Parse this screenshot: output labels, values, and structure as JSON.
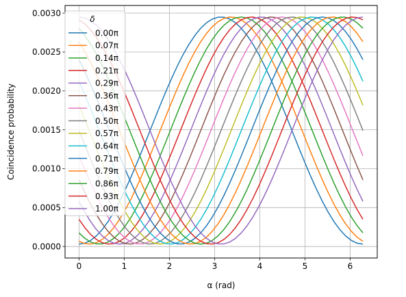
{
  "chart_data": {
    "type": "line",
    "xlabel": "α (rad)",
    "ylabel": "Coincidence probability",
    "xlim": [
      -0.31,
      6.6
    ],
    "ylim": [
      -0.000148,
      0.003098
    ],
    "x_ticks": [
      {
        "value": 0,
        "label": "0"
      },
      {
        "value": 1,
        "label": "1"
      },
      {
        "value": 2,
        "label": "2"
      },
      {
        "value": 3,
        "label": "3"
      },
      {
        "value": 4,
        "label": "4"
      },
      {
        "value": 5,
        "label": "5"
      },
      {
        "value": 6,
        "label": "6"
      }
    ],
    "y_ticks": [
      {
        "value": 0,
        "label": "0.0000"
      },
      {
        "value": 0.0005,
        "label": "0.0005"
      },
      {
        "value": 0.001,
        "label": "0.0010"
      },
      {
        "value": 0.0015,
        "label": "0.0015"
      },
      {
        "value": 0.002,
        "label": "0.0020"
      },
      {
        "value": 0.0025,
        "label": "0.0025"
      },
      {
        "value": 0.003,
        "label": "0.0030"
      }
    ],
    "grid": true,
    "legend": {
      "title": "δ",
      "placement": "upper-left"
    },
    "x_range": [
      0,
      6.2832
    ],
    "n_points": 50,
    "model": {
      "ymin": 3e-05,
      "ymax": 0.00295
    },
    "series": [
      {
        "name": "0.00π",
        "delta_over_pi": 0.0,
        "color": "#1f77b4"
      },
      {
        "name": "0.07π",
        "delta_over_pi": 0.0714,
        "color": "#ff7f0e"
      },
      {
        "name": "0.14π",
        "delta_over_pi": 0.1429,
        "color": "#2ca02c"
      },
      {
        "name": "0.21π",
        "delta_over_pi": 0.2143,
        "color": "#d62728"
      },
      {
        "name": "0.29π",
        "delta_over_pi": 0.2857,
        "color": "#9467bd"
      },
      {
        "name": "0.36π",
        "delta_over_pi": 0.3571,
        "color": "#8c564b"
      },
      {
        "name": "0.43π",
        "delta_over_pi": 0.4286,
        "color": "#e377c2"
      },
      {
        "name": "0.50π",
        "delta_over_pi": 0.5,
        "color": "#7f7f7f"
      },
      {
        "name": "0.57π",
        "delta_over_pi": 0.5714,
        "color": "#bcbd22"
      },
      {
        "name": "0.64π",
        "delta_over_pi": 0.6429,
        "color": "#17becf"
      },
      {
        "name": "0.71π",
        "delta_over_pi": 0.7143,
        "color": "#1f77b4"
      },
      {
        "name": "0.79π",
        "delta_over_pi": 0.7857,
        "color": "#ff7f0e"
      },
      {
        "name": "0.86π",
        "delta_over_pi": 0.8571,
        "color": "#2ca02c"
      },
      {
        "name": "0.93π",
        "delta_over_pi": 0.9286,
        "color": "#d62728"
      },
      {
        "name": "1.00π",
        "delta_over_pi": 1.0,
        "color": "#9467bd"
      }
    ]
  }
}
